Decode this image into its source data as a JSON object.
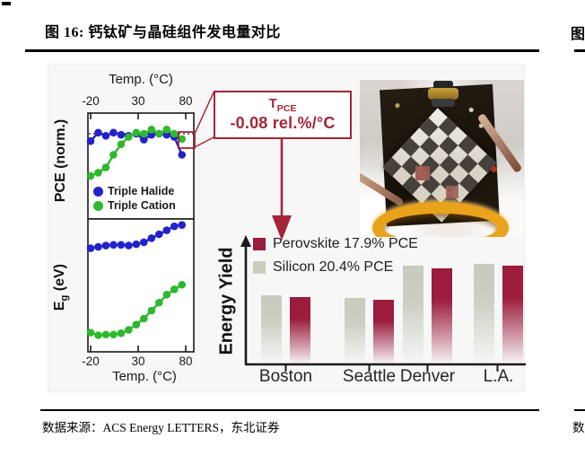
{
  "page": {
    "title": "图 16: 钙钛矿与晶硅组件发电量对比",
    "source_line": "数据来源：ACS Energy LETTERS，东北证券",
    "right_column_sliver": {
      "title_fragment": "图",
      "source_fragment": "数"
    }
  },
  "figure": {
    "callout": {
      "t_main": "T",
      "t_sub": "PCE",
      "line2": "-0.08 rel.%/°C"
    },
    "scatter": {
      "top_axis_title": "Temp. (°C)",
      "bottom_axis_title": "Temp. (°C)",
      "x_ticks": [
        "-20",
        "30",
        "80"
      ],
      "pce_label": "PCE (norm.)",
      "eg_main": "E",
      "eg_sub": "g",
      "eg_rest": " (eV)",
      "legend": [
        "Triple Halide",
        "Triple Cation"
      ]
    },
    "bar": {
      "ylabel": "Energy Yield",
      "legend": [
        {
          "label": "Perovskite 17.9% PCE",
          "color": "#9b1c3c"
        },
        {
          "label": "Silicon 20.4% PCE",
          "color": "#c9cdbf"
        }
      ]
    },
    "photo_label": "perovskite mini-module on measurement stage"
  },
  "colors": {
    "accent_red": "#a32638",
    "perovskite_bar": "#9b1c3c",
    "silicon_bar": "#c9cdbf",
    "triple_halide_blue": "#2323c8",
    "triple_cation_green": "#2eb82e"
  },
  "chart_data": [
    {
      "type": "scatter",
      "panel": "top",
      "xlabel": "Temp. (°C)",
      "ylabel": "PCE (norm.)",
      "x_ticks": [
        -20,
        30,
        80
      ],
      "xlim": [
        -23,
        88
      ],
      "reference_dotted_line_y": 1.0,
      "x": [
        -20,
        -12,
        -4,
        4,
        12,
        20,
        28,
        36,
        44,
        52,
        60,
        68,
        76
      ],
      "series": [
        {
          "name": "Triple Halide",
          "color": "#2323c8",
          "y": [
            0.965,
            1.005,
            0.99,
            1.005,
            0.995,
            0.99,
            1.0,
            0.972,
            0.995,
            1.0,
            0.995,
            0.985,
            0.9
          ]
        },
        {
          "name": "Triple Cation",
          "color": "#2eb82e",
          "y": [
            0.8,
            0.815,
            0.84,
            0.9,
            0.95,
            0.985,
            1.005,
            1.0,
            1.02,
            1.0,
            1.02,
            1.0,
            0.975
          ]
        }
      ],
      "annotation": "last Triple Cation point at ~80°C boxed in red, callout T_PCE -0.08 rel.%/°C"
    },
    {
      "type": "scatter",
      "panel": "bottom",
      "xlabel": "Temp. (°C)",
      "ylabel": "Eg (eV)",
      "x_ticks": [
        -20,
        30,
        80
      ],
      "y_units": "panel_fraction (no numeric y ticks shown in figure; 0 = panel bottom, 1 = panel top)",
      "x": [
        -20,
        -12,
        -4,
        4,
        12,
        20,
        28,
        36,
        44,
        52,
        60,
        68,
        76
      ],
      "series": [
        {
          "name": "Triple Halide",
          "color": "#2323c8",
          "y": [
            0.78,
            0.79,
            0.8,
            0.805,
            0.805,
            0.8,
            0.81,
            0.825,
            0.855,
            0.885,
            0.915,
            0.945,
            0.955
          ]
        },
        {
          "name": "Triple Cation",
          "color": "#2eb82e",
          "y": [
            0.145,
            0.125,
            0.13,
            0.13,
            0.14,
            0.165,
            0.205,
            0.25,
            0.31,
            0.37,
            0.43,
            0.47,
            0.505
          ]
        }
      ]
    },
    {
      "type": "bar",
      "ylabel": "Energy Yield",
      "y_units": "relative energy yield (axis unlabeled, 0-1 of axis height)",
      "categories": [
        "Boston",
        "Seattle",
        "Denver",
        "L.A."
      ],
      "series": [
        {
          "name": "Silicon 20.4% PCE",
          "color": "#c9cdbf",
          "values": [
            0.55,
            0.53,
            0.785,
            0.8
          ]
        },
        {
          "name": "Perovskite 17.9% PCE",
          "color": "#9b1c3c",
          "values": [
            0.535,
            0.515,
            0.765,
            0.785
          ]
        }
      ],
      "legend_position": "top-left"
    }
  ]
}
